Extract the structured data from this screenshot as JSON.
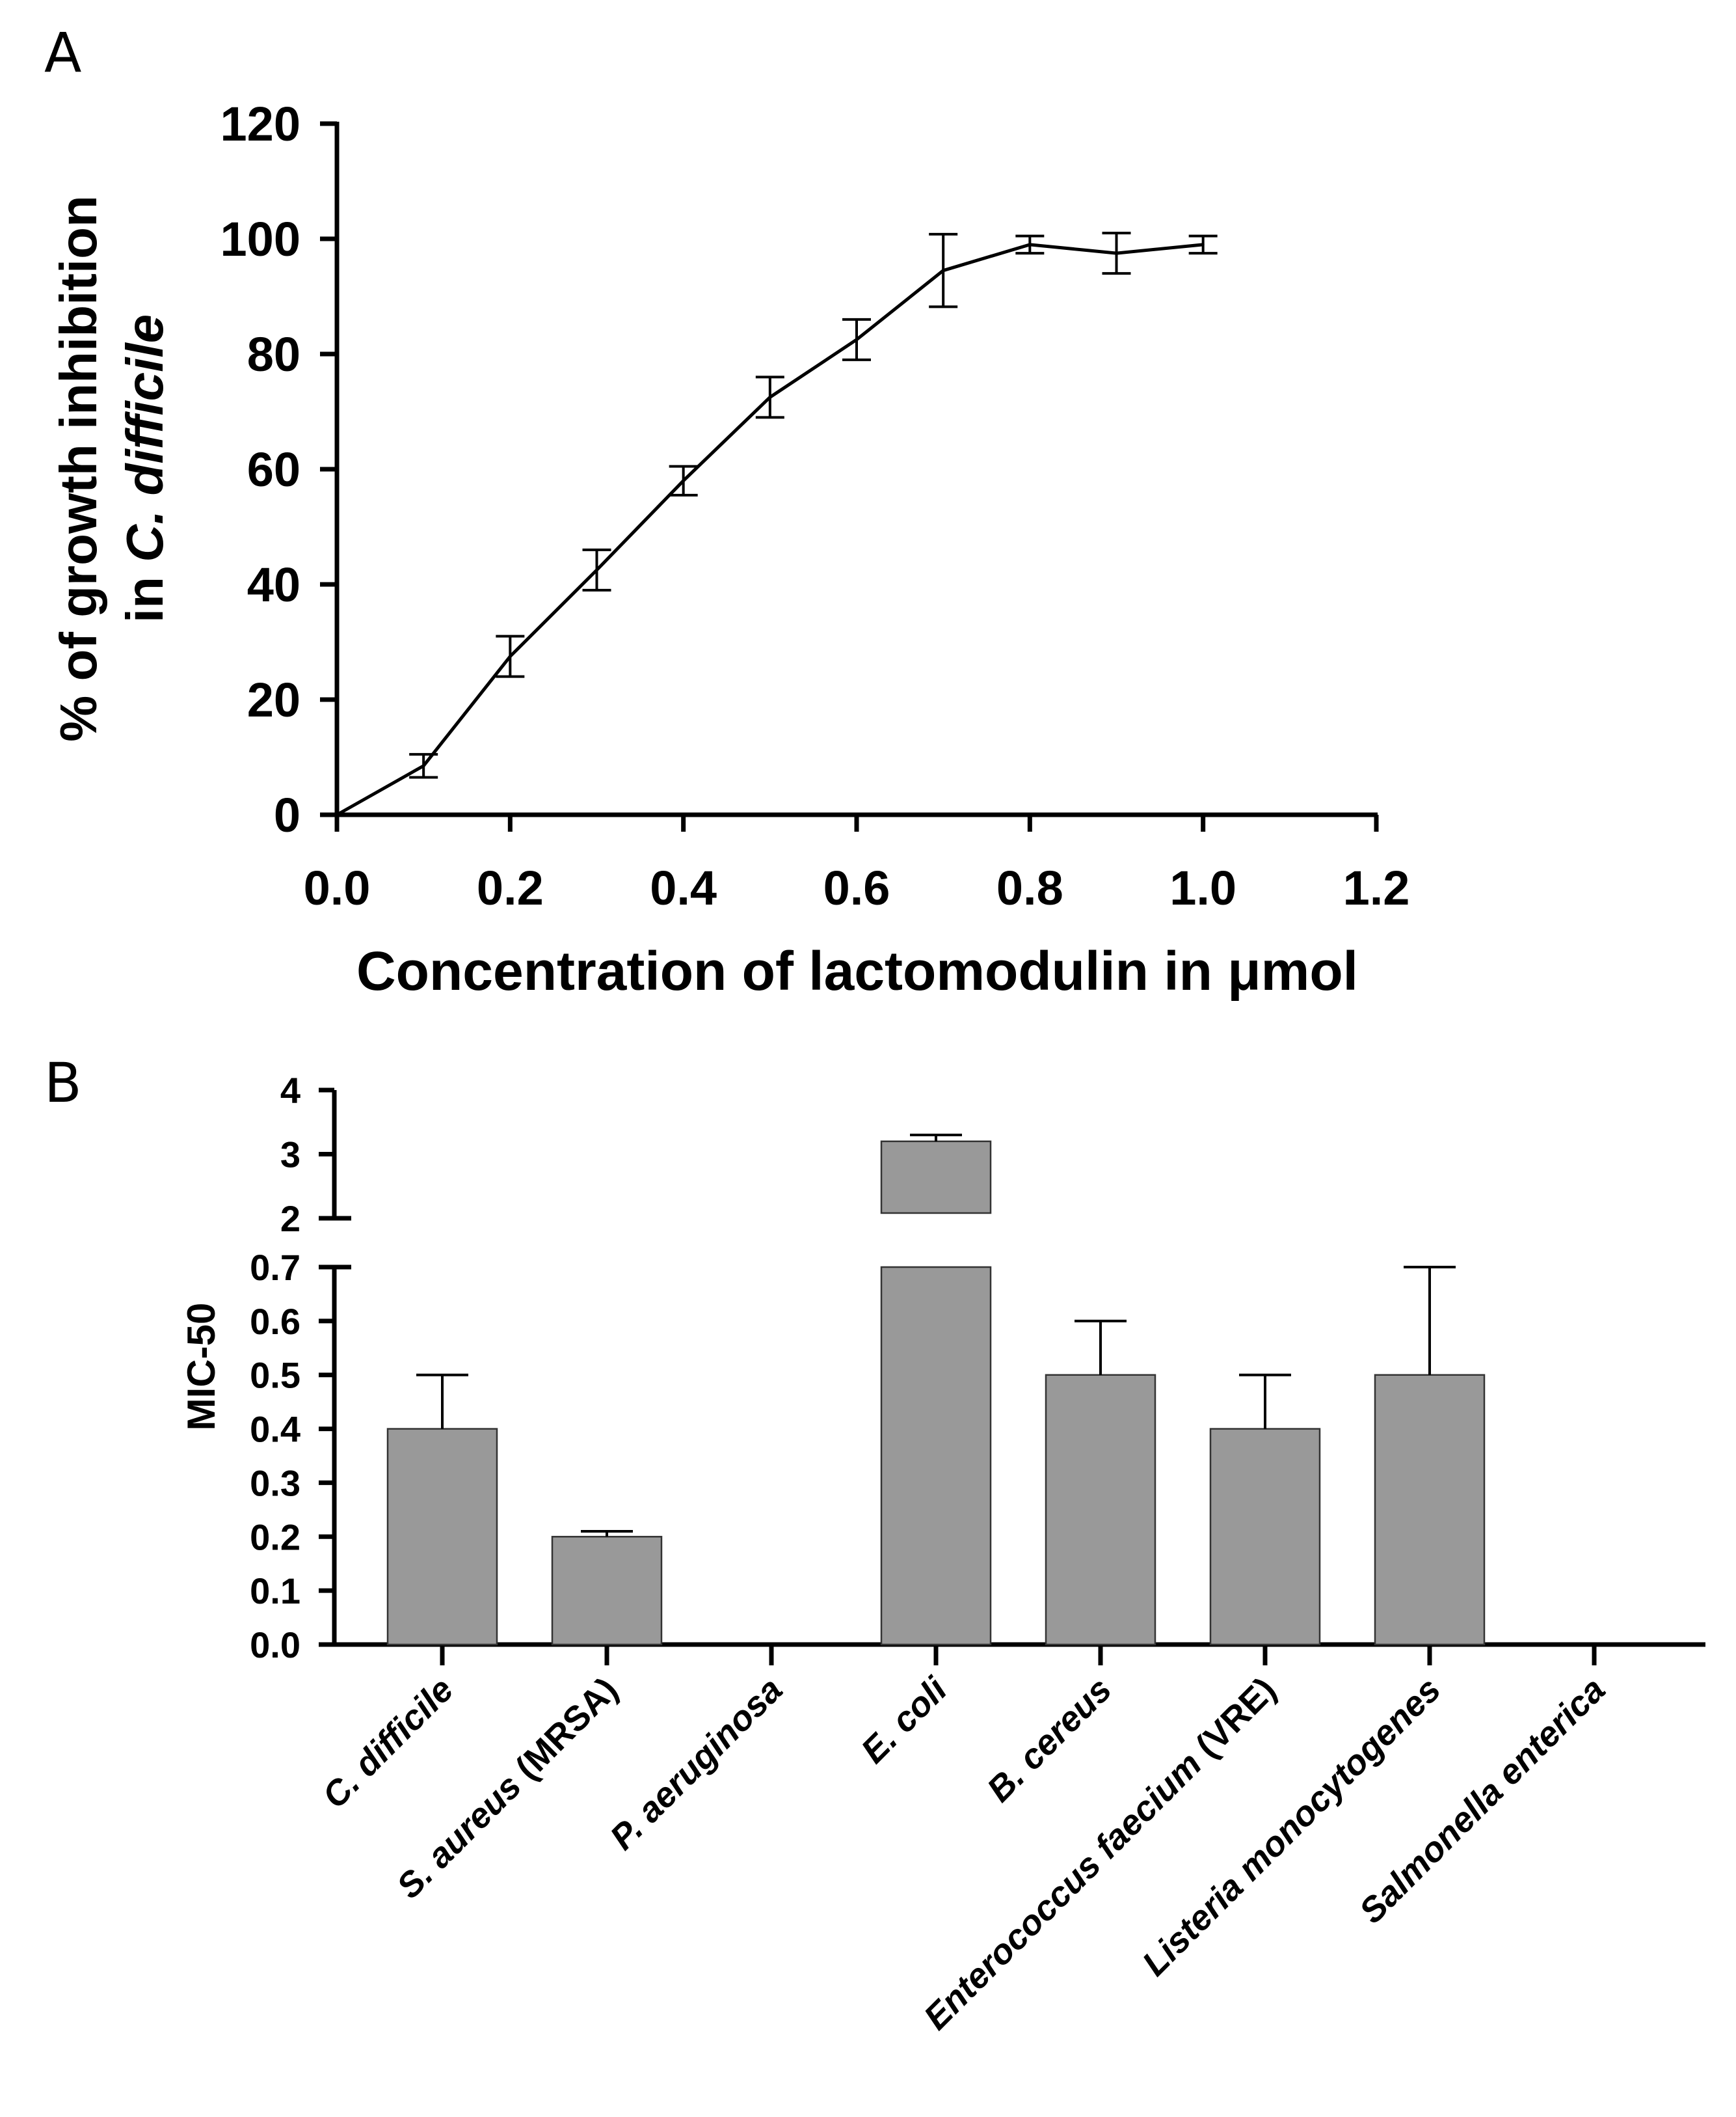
{
  "panels": {
    "a_label": "A",
    "b_label": "B"
  },
  "chart_data": [
    {
      "type": "line",
      "title": "",
      "xlabel": "Concentration of lactomodulin in μmol",
      "ylabel_line1": "% of growth inhibition",
      "ylabel_line2_prefix": "in ",
      "ylabel_line2_italic": "C. difficile",
      "xlim": [
        0.0,
        1.2
      ],
      "ylim": [
        0,
        120
      ],
      "x_ticks": [
        "0.0",
        "0.2",
        "0.4",
        "0.6",
        "0.8",
        "1.0",
        "1.2"
      ],
      "y_ticks": [
        "0",
        "20",
        "40",
        "60",
        "80",
        "100",
        "120"
      ],
      "series": [
        {
          "name": "C. difficile inhibition",
          "x": [
            0.0,
            0.1,
            0.2,
            0.3,
            0.4,
            0.5,
            0.6,
            0.7,
            0.8,
            0.9,
            1.0
          ],
          "y": [
            0,
            8.5,
            27.5,
            42.5,
            58,
            72.5,
            82.5,
            94.5,
            99,
            97.5,
            99
          ],
          "error": [
            0,
            2,
            3.5,
            3.5,
            2.5,
            3.5,
            3.5,
            6.3,
            1.5,
            3.5,
            1.5
          ]
        }
      ],
      "color": "#000000"
    },
    {
      "type": "bar",
      "title": "",
      "xlabel": "",
      "ylabel": "MIC-50",
      "categories": [
        "C. difficile",
        "S. aureus (MRSA)",
        "P. aeruginosa",
        "E. coli",
        "B. cereus",
        "Enterococcus faecium (VRE)",
        "Listeria monocytogenes",
        "Salmonella enterica"
      ],
      "category_italic_parts": [
        "C. difficile",
        "S. aureus",
        "P. aeruginosa",
        "E. coli",
        "B. cereus",
        "Enterococcus faecium",
        "Listeria monocytogenes",
        "Salmonella enterica"
      ],
      "category_plain_parts": [
        "",
        " (MRSA)",
        "",
        "",
        "",
        " (VRE)",
        "",
        ""
      ],
      "values": [
        0.4,
        0.2,
        null,
        3.2,
        0.5,
        0.4,
        0.5,
        null
      ],
      "errors": [
        0.1,
        0.01,
        null,
        0.1,
        0.1,
        0.1,
        0.2,
        null
      ],
      "broken_axis": {
        "lower_range": [
          0.0,
          0.7
        ],
        "upper_range": [
          2,
          4
        ]
      },
      "y_ticks_lower": [
        "0.0",
        "0.1",
        "0.2",
        "0.3",
        "0.4",
        "0.5",
        "0.6",
        "0.7"
      ],
      "y_ticks_upper": [
        "2",
        "3",
        "4"
      ],
      "bar_color": "#999999"
    }
  ]
}
